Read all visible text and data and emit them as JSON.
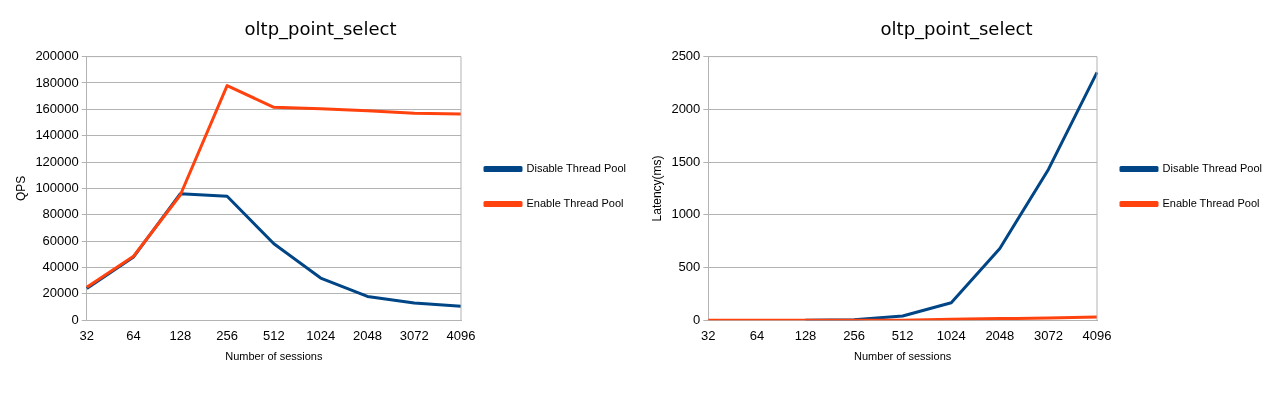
{
  "chart_data": [
    {
      "type": "line",
      "title": "oltp_point_select",
      "xlabel": "Number of sessions",
      "ylabel": "QPS",
      "categories": [
        "32",
        "64",
        "128",
        "256",
        "512",
        "1024",
        "2048",
        "3072",
        "4096"
      ],
      "series": [
        {
          "name": "Disable Thread Pool",
          "color": "#004586",
          "values": [
            24000,
            48000,
            96000,
            94000,
            58000,
            32000,
            18000,
            13000,
            10500
          ]
        },
        {
          "name": "Enable Thread Pool",
          "color": "#ff420e",
          "values": [
            25000,
            48500,
            95000,
            178000,
            161500,
            160500,
            159000,
            157000,
            156500
          ]
        }
      ],
      "ylim": [
        0,
        200000
      ],
      "yticks": [
        0,
        20000,
        40000,
        60000,
        80000,
        100000,
        120000,
        140000,
        160000,
        180000,
        200000
      ],
      "grid": "y",
      "legend": "right",
      "marker": "none"
    },
    {
      "type": "line",
      "title": "oltp_point_select",
      "xlabel": "Number of sessions",
      "ylabel": "Latency(ms)",
      "categories": [
        "32",
        "64",
        "128",
        "256",
        "512",
        "1024",
        "2048",
        "3072",
        "4096"
      ],
      "series": [
        {
          "name": "Disable Thread Pool",
          "color": "#004586",
          "values": [
            null,
            null,
            0,
            5,
            40,
            165,
            680,
            1430,
            2350
          ]
        },
        {
          "name": "Enable Thread Pool",
          "color": "#ff420e",
          "values": [
            0,
            0,
            0,
            0,
            0,
            10,
            15,
            20,
            30
          ]
        }
      ],
      "ylim": [
        0,
        2500
      ],
      "yticks": [
        0,
        500,
        1000,
        1500,
        2000,
        2500
      ],
      "grid": "y",
      "legend": "right",
      "marker": "none"
    }
  ]
}
